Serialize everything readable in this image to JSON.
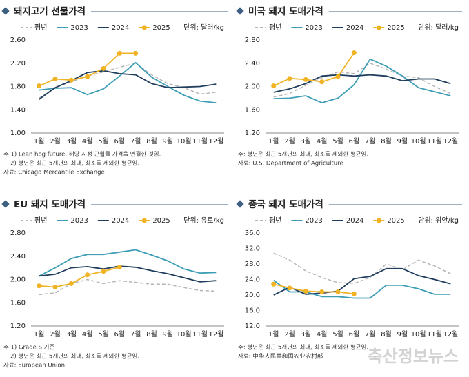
{
  "chart_data": [
    {
      "type": "line",
      "title": "돼지고기 선물가격",
      "unit": "단위: 달러/kg",
      "categories": [
        "1월",
        "2월",
        "3월",
        "4월",
        "5월",
        "6월",
        "7월",
        "8월",
        "9월",
        "10월",
        "11월",
        "12월"
      ],
      "ylim": [
        1.0,
        2.6
      ],
      "yticks": [
        {
          "value": 1.0,
          "label": "1.00"
        },
        {
          "value": 1.4,
          "label": "1.40"
        },
        {
          "value": 1.8,
          "label": "1.80"
        },
        {
          "value": 2.2,
          "label": "2.20"
        },
        {
          "value": 2.6,
          "label": "2.60"
        }
      ],
      "grid": false,
      "series": [
        {
          "name": "평년",
          "color": "#b5b5b5",
          "dashed": true,
          "values": [
            1.6,
            1.78,
            1.88,
            1.98,
            2.05,
            2.13,
            2.2,
            2.0,
            1.85,
            1.78,
            1.67,
            1.7
          ]
        },
        {
          "name": "2023",
          "color": "#3c9db5",
          "values": [
            1.74,
            1.77,
            1.78,
            1.66,
            1.76,
            1.98,
            2.21,
            1.96,
            1.8,
            1.65,
            1.55,
            1.52
          ]
        },
        {
          "name": "2024",
          "color": "#1f3d5c",
          "values": [
            1.58,
            1.78,
            1.9,
            2.04,
            2.07,
            2.02,
            2.0,
            1.85,
            1.78,
            1.79,
            1.8,
            1.84
          ]
        },
        {
          "name": "2025",
          "color": "#f0b323",
          "marker": true,
          "values": [
            1.81,
            1.93,
            1.91,
            1.97,
            2.11,
            2.37,
            2.37,
            null,
            null,
            null,
            null,
            null
          ]
        }
      ],
      "notes": [
        "주 1) Lean hog future, 해당 시점 근월물 가격을 연결한 것임.",
        "2) 평년은 최근 5개년의 최대, 최소를 제외한 평균임.",
        "자료: Chicago Mercantile Exchange"
      ]
    },
    {
      "type": "line",
      "title": "미국 돼지 도매가격",
      "unit": "단위: 달러/kg",
      "categories": [
        "1월",
        "2월",
        "3월",
        "4월",
        "5월",
        "6월",
        "7월",
        "8월",
        "9월",
        "10월",
        "11월",
        "12월"
      ],
      "ylim": [
        1.2,
        2.8
      ],
      "yticks": [
        {
          "value": 1.2,
          "label": "1.20"
        },
        {
          "value": 1.6,
          "label": "1.60"
        },
        {
          "value": 2.0,
          "label": "2.00"
        },
        {
          "value": 2.4,
          "label": "2.40"
        },
        {
          "value": 2.8,
          "label": "2.80"
        }
      ],
      "grid": false,
      "series": [
        {
          "name": "평년",
          "color": "#b5b5b5",
          "dashed": true,
          "values": [
            1.82,
            1.88,
            2.02,
            2.15,
            2.25,
            2.22,
            2.4,
            2.3,
            2.18,
            2.15,
            2.0,
            1.88
          ]
        },
        {
          "name": "2023",
          "color": "#3c9db5",
          "values": [
            1.79,
            1.8,
            1.84,
            1.72,
            1.8,
            2.03,
            2.47,
            2.35,
            2.18,
            1.98,
            1.91,
            1.84
          ]
        },
        {
          "name": "2024",
          "color": "#1f3d5c",
          "values": [
            1.9,
            1.96,
            2.05,
            2.18,
            2.2,
            2.18,
            2.2,
            2.18,
            2.1,
            2.13,
            2.13,
            2.05
          ]
        },
        {
          "name": "2025",
          "color": "#f0b323",
          "marker": true,
          "values": [
            2.01,
            2.14,
            2.12,
            2.08,
            2.17,
            2.58,
            null,
            null,
            null,
            null,
            null,
            null
          ]
        }
      ],
      "notes": [
        "주: 평년은 최근 5개년의 최대, 최소를 제외한 평균임.",
        "자료: U.S. Department of Agriculture"
      ]
    },
    {
      "type": "line",
      "title": "EU 돼지 도매가격",
      "unit": "단위: 유로/kg",
      "categories": [
        "1월",
        "2월",
        "3월",
        "4월",
        "5월",
        "6월",
        "7월",
        "8월",
        "9월",
        "10월",
        "11월",
        "12월"
      ],
      "ylim": [
        1.2,
        2.8
      ],
      "yticks": [
        {
          "value": 1.2,
          "label": "1.20"
        },
        {
          "value": 1.6,
          "label": "1.60"
        },
        {
          "value": 2.0,
          "label": "2.00"
        },
        {
          "value": 2.4,
          "label": "2.40"
        },
        {
          "value": 2.8,
          "label": "2.80"
        }
      ],
      "grid": false,
      "series": [
        {
          "name": "평년",
          "color": "#b5b5b5",
          "dashed": true,
          "values": [
            1.74,
            1.77,
            1.93,
            2.0,
            1.93,
            1.98,
            1.95,
            1.92,
            1.92,
            1.86,
            1.81,
            1.8
          ]
        },
        {
          "name": "2023",
          "color": "#3c9db5",
          "values": [
            2.06,
            2.2,
            2.36,
            2.43,
            2.43,
            2.47,
            2.51,
            2.42,
            2.32,
            2.18,
            2.11,
            2.12
          ]
        },
        {
          "name": "2024",
          "color": "#1f3d5c",
          "values": [
            2.06,
            2.09,
            2.2,
            2.22,
            2.18,
            2.23,
            2.21,
            2.15,
            2.1,
            2.03,
            1.96,
            1.98
          ]
        },
        {
          "name": "2025",
          "color": "#f0b323",
          "marker": true,
          "values": [
            1.89,
            1.87,
            1.93,
            2.08,
            2.14,
            2.21,
            null,
            null,
            null,
            null,
            null,
            null
          ]
        }
      ],
      "notes": [
        "주 1) Grade S 기준",
        "2) 평년은 최근 5개년의 최대, 최소를 제외한 평균임.",
        "자료: European Union"
      ]
    },
    {
      "type": "line",
      "title": "중국 돼지 도매가격",
      "unit": "단위: 위안/kg",
      "categories": [
        "1월",
        "2월",
        "3월",
        "4월",
        "5월",
        "6월",
        "7월",
        "8월",
        "9월",
        "10월",
        "11월",
        "12월"
      ],
      "ylim": [
        12,
        36
      ],
      "yticks": [
        {
          "value": 12,
          "label": "12.0"
        },
        {
          "value": 16,
          "label": "16.0"
        },
        {
          "value": 20,
          "label": "20.0"
        },
        {
          "value": 24,
          "label": "24.0"
        },
        {
          "value": 28,
          "label": "28.0"
        },
        {
          "value": 32,
          "label": "32.0"
        },
        {
          "value": 36,
          "label": "36.0"
        }
      ],
      "grid": false,
      "series": [
        {
          "name": "평년",
          "color": "#b5b5b5",
          "dashed": true,
          "values": [
            30.8,
            29.0,
            26.2,
            24.5,
            23.2,
            23.0,
            24.5,
            28.0,
            26.5,
            29.0,
            27.5,
            25.5
          ]
        },
        {
          "name": "2023",
          "color": "#3c9db5",
          "values": [
            23.8,
            20.8,
            20.8,
            19.6,
            19.6,
            19.2,
            19.2,
            22.5,
            22.5,
            21.6,
            20.2,
            20.2
          ]
        },
        {
          "name": "2024",
          "color": "#1f3d5c",
          "values": [
            20.0,
            22.0,
            20.2,
            20.5,
            21.0,
            24.2,
            24.8,
            26.8,
            26.8,
            25.0,
            24.0,
            22.9
          ]
        },
        {
          "name": "2025",
          "color": "#f0b323",
          "marker": true,
          "values": [
            22.8,
            21.8,
            21.0,
            20.8,
            20.8,
            20.3,
            null,
            null,
            null,
            null,
            null,
            null
          ]
        }
      ],
      "notes": [
        "주: 평년은 최근 5개년의 최대, 최소를 제외한 평균임.",
        "자료: 中华人民共和国农业农村部"
      ]
    }
  ],
  "watermark": "축산정보뉴스"
}
